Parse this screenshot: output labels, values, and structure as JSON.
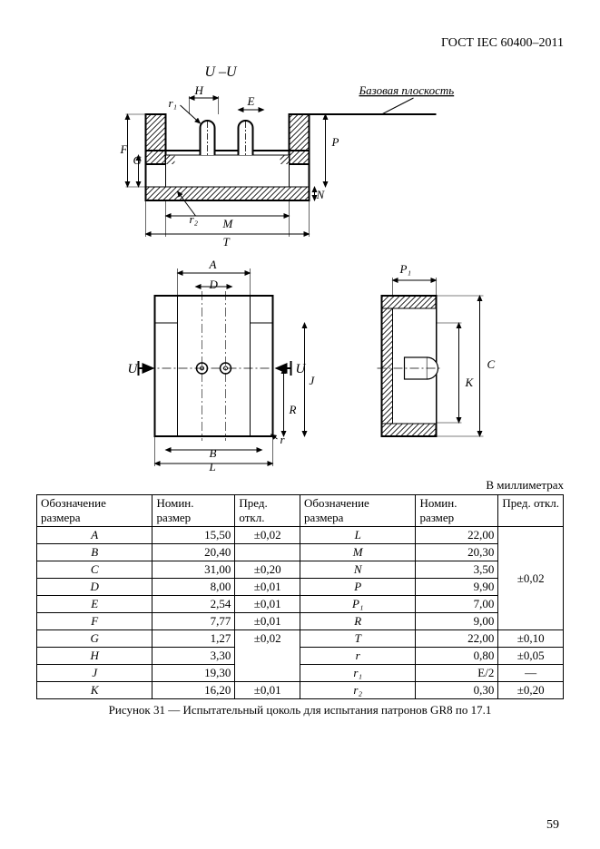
{
  "document_number": "ГОСТ IEC 60400–2011",
  "section_label": "U –U",
  "datum_label": "Базовая плоскость",
  "units_note": "В миллиметрах",
  "caption": "Рисунок 31 — Испытательный цоколь для испытания патронов GR8 по 17.1",
  "page_number": "59",
  "table": {
    "header": {
      "col1": "Обозначение размера",
      "col2": "Номин. размер",
      "col3": "Пред. откл.",
      "col4": "Обозначение размера",
      "col5": "Номин. размер",
      "col6": "Пред. откл."
    },
    "left": [
      {
        "s": "A",
        "v": "15,50",
        "t": "±0,02"
      },
      {
        "s": "B",
        "v": "20,40",
        "t": null
      },
      {
        "s": "C",
        "v": "31,00",
        "t": "±0,20"
      },
      {
        "s": "D",
        "v": "8,00",
        "t": "±0,01"
      },
      {
        "s": "E",
        "v": "2,54",
        "t": "±0,01"
      },
      {
        "s": "F",
        "v": "7,77",
        "t": "±0,01"
      },
      {
        "s": "G",
        "v": "1,27",
        "t": null
      },
      {
        "s": "H",
        "v": "3,30",
        "t": null
      },
      {
        "s": "J",
        "v": "19,30",
        "t": null
      },
      {
        "s": "K",
        "v": "16,20",
        "t": "±0,01"
      }
    ],
    "left_merge_ghj": "±0,02",
    "right": [
      {
        "s": "L",
        "v": "22,00"
      },
      {
        "s": "M",
        "v": "20,30"
      },
      {
        "s": "N",
        "v": "3,50"
      },
      {
        "s": "P",
        "v": "9,90"
      },
      {
        "s": "P₁",
        "v": "7,00"
      },
      {
        "s": "R",
        "v": "9,00"
      },
      {
        "s": "T",
        "v": "22,00"
      },
      {
        "s": "r",
        "v": "0,80"
      },
      {
        "s": "r₁",
        "v": "E/2"
      },
      {
        "s": "r₂",
        "v": "0,30"
      }
    ],
    "right_tol_group1": "±0,02",
    "right_tol_T": "±0,10",
    "right_tol_r": "±0,05",
    "right_tol_r1": "—",
    "right_tol_r2": "±0,20"
  },
  "style": {
    "stroke": "#000000",
    "hatch": "#000000",
    "font_main": 14,
    "font_table": 13
  }
}
